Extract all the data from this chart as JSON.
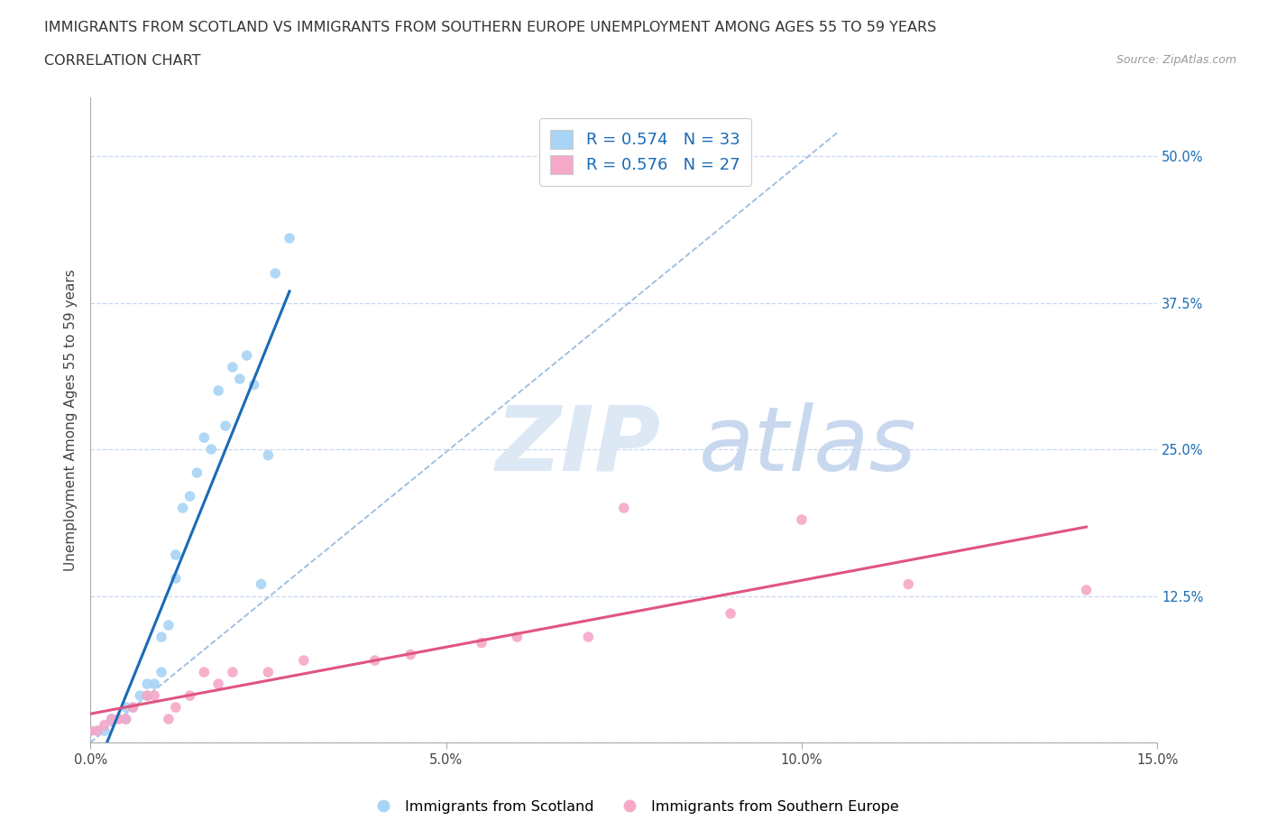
{
  "title_line1": "IMMIGRANTS FROM SCOTLAND VS IMMIGRANTS FROM SOUTHERN EUROPE UNEMPLOYMENT AMONG AGES 55 TO 59 YEARS",
  "title_line2": "CORRELATION CHART",
  "source_text": "Source: ZipAtlas.com",
  "ylabel": "Unemployment Among Ages 55 to 59 years",
  "xlim": [
    0.0,
    0.15
  ],
  "ylim": [
    0.0,
    0.55
  ],
  "xtick_vals": [
    0.0,
    0.05,
    0.1,
    0.15
  ],
  "xticklabels": [
    "0.0%",
    "5.0%",
    "10.0%",
    "15.0%"
  ],
  "ytick_right_labels": [
    "50.0%",
    "37.5%",
    "25.0%",
    "12.5%",
    ""
  ],
  "ytick_right_values": [
    0.5,
    0.375,
    0.25,
    0.125,
    0.0
  ],
  "scotland_R": 0.574,
  "scotland_N": 33,
  "southern_R": 0.576,
  "southern_N": 27,
  "scotland_color": "#a8d4f5",
  "southern_color": "#f5a8c8",
  "scotland_line_color": "#1a6bb5",
  "southern_line_color": "#e05580",
  "scotland_x": [
    0.0,
    0.001,
    0.002,
    0.003,
    0.003,
    0.004,
    0.005,
    0.005,
    0.006,
    0.007,
    0.008,
    0.008,
    0.009,
    0.01,
    0.01,
    0.011,
    0.012,
    0.012,
    0.013,
    0.014,
    0.015,
    0.016,
    0.017,
    0.018,
    0.019,
    0.02,
    0.021,
    0.022,
    0.023,
    0.024,
    0.025,
    0.026,
    0.028
  ],
  "scotland_y": [
    0.01,
    0.01,
    0.01,
    0.02,
    0.02,
    0.02,
    0.02,
    0.03,
    0.03,
    0.04,
    0.04,
    0.05,
    0.05,
    0.06,
    0.09,
    0.1,
    0.14,
    0.16,
    0.2,
    0.21,
    0.23,
    0.26,
    0.25,
    0.3,
    0.27,
    0.32,
    0.31,
    0.33,
    0.305,
    0.135,
    0.245,
    0.4,
    0.43
  ],
  "southern_x": [
    0.0,
    0.001,
    0.002,
    0.003,
    0.004,
    0.005,
    0.006,
    0.008,
    0.009,
    0.011,
    0.012,
    0.014,
    0.016,
    0.018,
    0.02,
    0.025,
    0.03,
    0.04,
    0.045,
    0.055,
    0.06,
    0.07,
    0.075,
    0.09,
    0.1,
    0.115,
    0.14
  ],
  "southern_y": [
    0.01,
    0.01,
    0.015,
    0.02,
    0.02,
    0.02,
    0.03,
    0.04,
    0.04,
    0.02,
    0.03,
    0.04,
    0.06,
    0.05,
    0.06,
    0.06,
    0.07,
    0.07,
    0.075,
    0.085,
    0.09,
    0.09,
    0.2,
    0.11,
    0.19,
    0.135,
    0.13
  ],
  "ref_line_x": [
    0.0,
    0.105
  ],
  "ref_line_y": [
    0.0,
    0.52
  ],
  "background_color": "#ffffff",
  "grid_color": "#c8d8ee",
  "title_fontsize": 11.5,
  "label_fontsize": 11,
  "tick_fontsize": 10.5
}
